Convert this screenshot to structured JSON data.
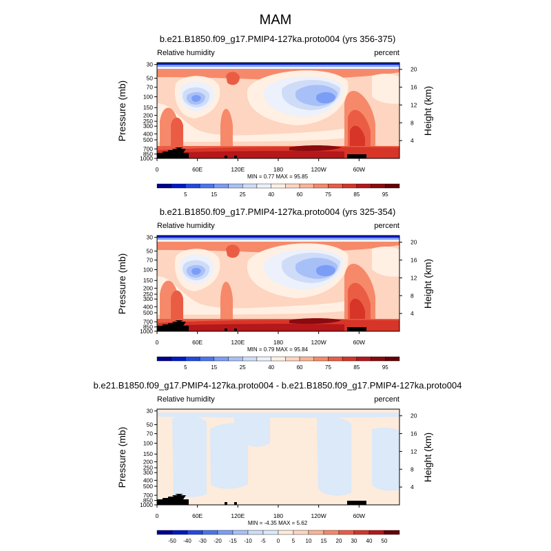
{
  "page_title": "MAM",
  "variable_label": "Relative humidity",
  "units_label": "percent",
  "left_axis_label": "Pressure (mb)",
  "right_axis_label": "Height (km)",
  "pressure_ticks": [
    1000,
    850,
    700,
    500,
    400,
    300,
    250,
    200,
    150,
    100,
    70,
    50,
    30
  ],
  "height_ticks": [
    4,
    8,
    12,
    16,
    20
  ],
  "lon_ticks": [
    "0",
    "60E",
    "120E",
    "180",
    "120W",
    "60W"
  ],
  "colors": {
    "abs_scale": [
      "#00008f",
      "#0019c6",
      "#234ae0",
      "#4a75f0",
      "#7b9df6",
      "#a8c0f8",
      "#cfdcf8",
      "#ecf1fb",
      "#fff0e3",
      "#fdd5c0",
      "#fbb496",
      "#f6896a",
      "#ea5d44",
      "#d63528",
      "#b5171a",
      "#8a0a0f",
      "#650006"
    ],
    "diff_scale": [
      "#00008f",
      "#0019c6",
      "#234ae0",
      "#4a75f0",
      "#7b9df6",
      "#a8c0f8",
      "#cfdcf8",
      "#dbe9f9",
      "#fdebdc",
      "#fdd5c0",
      "#fbb496",
      "#f6896a",
      "#ea5d44",
      "#d63528",
      "#b5171a",
      "#650006"
    ],
    "topography": "#000000"
  },
  "chart_data": [
    {
      "type": "heatmap",
      "title": "b.e21.B1850.f09_g17.PMIP4-127ka.proto004 (yrs 356-375)",
      "min_label": "MIN =",
      "min_value": "0.77",
      "max_label": "MAX =",
      "max_value": "95.85",
      "colorbar_labels": [
        "5",
        "15",
        "25",
        "40",
        "60",
        "75",
        "85",
        "95"
      ]
    },
    {
      "type": "heatmap",
      "title": "b.e21.B1850.f09_g17.PMIP4-127ka.proto004 (yrs 325-354)",
      "min_label": "MIN =",
      "min_value": "0.79",
      "max_label": "MAX =",
      "max_value": "95.84",
      "colorbar_labels": [
        "5",
        "15",
        "25",
        "40",
        "60",
        "75",
        "85",
        "95"
      ]
    },
    {
      "type": "heatmap",
      "title": "b.e21.B1850.f09_g17.PMIP4-127ka.proto004 - b.e21.B1850.f09_g17.PMIP4-127ka.proto004",
      "min_label": "MIN =",
      "min_value": "-4.35",
      "max_label": "MAX =",
      "max_value": "5.62",
      "colorbar_labels": [
        "-50",
        "-40",
        "-30",
        "-20",
        "-15",
        "-10",
        "-5",
        "0",
        "5",
        "10",
        "15",
        "20",
        "30",
        "40",
        "50"
      ]
    }
  ]
}
